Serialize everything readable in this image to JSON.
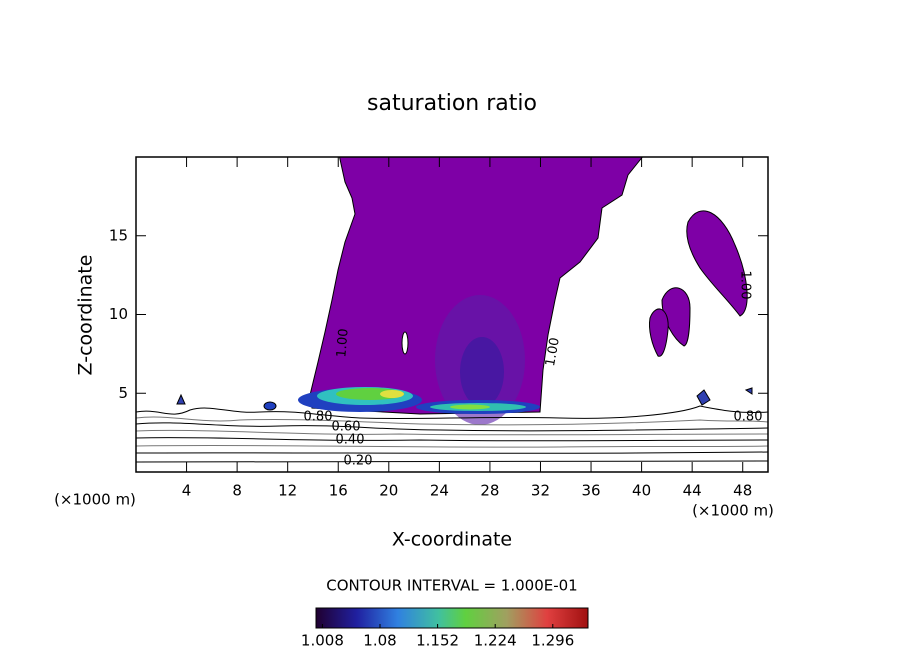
{
  "chart_data": {
    "type": "contour",
    "title": "saturation ratio",
    "x_label": "X-coordinate",
    "y_label": "Z-coordinate",
    "unit_label": "(×1000 m)",
    "xlim": [
      0,
      50
    ],
    "ylim": [
      0,
      20
    ],
    "xticks": [
      4,
      8,
      12,
      16,
      20,
      24,
      28,
      32,
      36,
      40,
      44,
      48
    ],
    "yticks": [
      5,
      10,
      15
    ],
    "contour_levels": [
      {
        "value": 1.0,
        "label": "1.00"
      },
      {
        "value": 0.8,
        "label": "0.80"
      },
      {
        "value": 0.6,
        "label": "0.60"
      },
      {
        "value": 0.4,
        "label": "0.40"
      },
      {
        "value": 0.2,
        "label": "0.20"
      }
    ],
    "contour_interval_label": "CONTOUR INTERVAL = 1.000E-01",
    "colorbar": {
      "lim": [
        1.0,
        1.34
      ],
      "ticks": [
        1.008,
        1.08,
        1.152,
        1.224,
        1.296
      ]
    },
    "fill_color": "#7e00a6"
  }
}
